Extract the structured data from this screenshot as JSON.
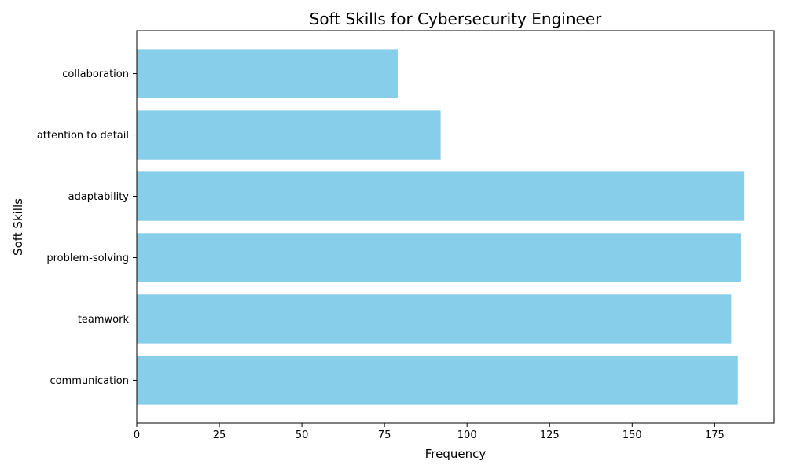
{
  "chart_data": {
    "type": "bar",
    "orientation": "horizontal",
    "title": "Soft Skills for Cybersecurity Engineer",
    "xlabel": "Frequency",
    "ylabel": "Soft Skills",
    "categories": [
      "communication",
      "teamwork",
      "problem-solving",
      "adaptability",
      "attention to detail",
      "collaboration"
    ],
    "values": [
      182,
      180,
      183,
      184,
      92,
      79
    ],
    "xlim": [
      0,
      193
    ],
    "xticks": [
      0,
      25,
      50,
      75,
      100,
      125,
      150,
      175
    ],
    "bar_color": "#87ceeb",
    "grid": false,
    "legend": "none"
  }
}
